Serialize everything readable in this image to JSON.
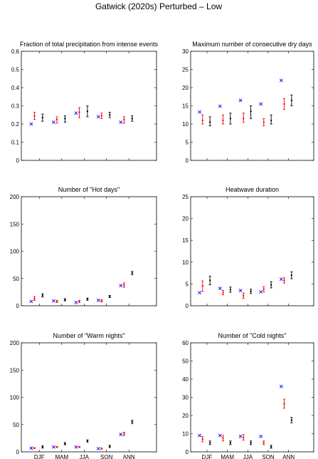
{
  "figure_title": "Gatwick (2020s) Perturbed – Low",
  "colors": {
    "series_a": "#ff0000",
    "series_b": "#000000",
    "marker": "#0000ff",
    "axis": "#000000"
  },
  "chart_data": [
    {
      "type": "errorbar",
      "title": "Fraction of total precipitation from intense events",
      "categories": [
        "DJF",
        "MAM",
        "JJA",
        "SON",
        "ANN"
      ],
      "show_xticklabels": false,
      "ylim": [
        0,
        0.6
      ],
      "yticks": [
        "0",
        "0.1",
        "0.2",
        "0.3",
        "0.4",
        "0.5",
        "0.6"
      ],
      "ytick_values": [
        0,
        0.1,
        0.2,
        0.3,
        0.4,
        0.5,
        0.6
      ],
      "series": [
        {
          "color": "red",
          "mid": [
            0.245,
            0.225,
            0.265,
            0.245,
            0.225
          ],
          "low": [
            0.225,
            0.205,
            0.235,
            0.23,
            0.205
          ],
          "high": [
            0.265,
            0.24,
            0.29,
            0.26,
            0.24
          ]
        },
        {
          "color": "black",
          "mid": [
            0.235,
            0.23,
            0.27,
            0.25,
            0.23
          ],
          "low": [
            0.215,
            0.21,
            0.24,
            0.235,
            0.215
          ],
          "high": [
            0.255,
            0.245,
            0.3,
            0.265,
            0.245
          ]
        }
      ],
      "points": [
        0.2,
        0.21,
        0.26,
        0.24,
        0.21
      ]
    },
    {
      "type": "errorbar",
      "title": "Maximum number of consecutive dry days",
      "categories": [
        "DJF",
        "MAM",
        "JJA",
        "SON",
        "ANN"
      ],
      "show_xticklabels": false,
      "ylim": [
        0,
        30
      ],
      "yticks": [
        "0",
        "5",
        "10",
        "15",
        "20",
        "25",
        "30"
      ],
      "ytick_values": [
        0,
        5,
        10,
        15,
        20,
        25,
        30
      ],
      "series": [
        {
          "color": "red",
          "mid": [
            11,
            11,
            11.5,
            10.5,
            15.5
          ],
          "low": [
            10,
            10,
            10.5,
            9.5,
            14
          ],
          "high": [
            12.5,
            12.5,
            13,
            11.5,
            17
          ]
        },
        {
          "color": "black",
          "mid": [
            10.5,
            11.5,
            13.5,
            11,
            16.5
          ],
          "low": [
            9.5,
            10,
            11.5,
            10,
            15
          ],
          "high": [
            12,
            13,
            15,
            12.5,
            18
          ]
        }
      ],
      "points": [
        13.3,
        14.9,
        16.5,
        15.5,
        22
      ]
    },
    {
      "type": "errorbar",
      "title": "Number of \"Hot days\"",
      "categories": [
        "DJF",
        "MAM",
        "JJA",
        "SON",
        "ANN"
      ],
      "show_xticklabels": false,
      "ylim": [
        0,
        200
      ],
      "yticks": [
        "0",
        "50",
        "100",
        "150",
        "200"
      ],
      "ytick_values": [
        0,
        50,
        100,
        150,
        200
      ],
      "series": [
        {
          "color": "red",
          "mid": [
            13,
            8,
            8,
            9,
            38
          ],
          "low": [
            10,
            6,
            6,
            7,
            34
          ],
          "high": [
            17,
            10,
            10,
            11,
            42
          ]
        },
        {
          "color": "black",
          "mid": [
            19,
            11,
            12,
            17,
            60
          ],
          "low": [
            16,
            9,
            10,
            15,
            57
          ],
          "high": [
            22,
            13,
            14,
            19,
            63
          ]
        }
      ],
      "points": [
        8,
        9,
        6,
        10,
        37
      ]
    },
    {
      "type": "errorbar",
      "title": "Heatwave duration",
      "categories": [
        "DJF",
        "MAM",
        "JJA",
        "SON",
        "ANN"
      ],
      "show_xticklabels": false,
      "ylim": [
        0,
        25
      ],
      "yticks": [
        "0",
        "5",
        "10",
        "15",
        "20",
        "25"
      ],
      "ytick_values": [
        0,
        5,
        10,
        15,
        20,
        25
      ],
      "series": [
        {
          "color": "red",
          "mid": [
            4.5,
            3,
            2.3,
            3.8,
            5.8
          ],
          "low": [
            3.3,
            2.5,
            1.7,
            3.2,
            5.2
          ],
          "high": [
            5.7,
            3.5,
            2.9,
            4.4,
            6.4
          ]
        },
        {
          "color": "black",
          "mid": [
            5.8,
            3.7,
            3.3,
            4.8,
            7
          ],
          "low": [
            4.8,
            3.1,
            2.8,
            4.1,
            6.2
          ],
          "high": [
            6.8,
            4.3,
            3.8,
            5.5,
            7.8
          ]
        }
      ],
      "points": [
        3,
        4,
        3.5,
        3.2,
        6.1
      ]
    },
    {
      "type": "errorbar",
      "title": "Number of \"Warm nights\"",
      "categories": [
        "DJF",
        "MAM",
        "JJA",
        "SON",
        "ANN"
      ],
      "show_xticklabels": true,
      "ylim": [
        0,
        200
      ],
      "yticks": [
        "0",
        "50",
        "100",
        "150",
        "200"
      ],
      "ytick_values": [
        0,
        50,
        100,
        150,
        200
      ],
      "series": [
        {
          "color": "red",
          "mid": [
            7,
            9,
            9,
            6,
            33
          ],
          "low": [
            6,
            8,
            8,
            5,
            30
          ],
          "high": [
            8,
            10,
            10,
            7,
            36
          ]
        },
        {
          "color": "black",
          "mid": [
            9,
            15,
            20,
            10,
            55
          ],
          "low": [
            7,
            13,
            18,
            8,
            52
          ],
          "high": [
            11,
            17,
            22,
            12,
            58
          ]
        }
      ],
      "points": [
        7,
        9,
        9,
        6,
        32
      ]
    },
    {
      "type": "errorbar",
      "title": "Number of \"Cold nights\"",
      "categories": [
        "DJF",
        "MAM",
        "JJA",
        "SON",
        "ANN"
      ],
      "show_xticklabels": true,
      "ylim": [
        0,
        60
      ],
      "yticks": [
        "0",
        "10",
        "20",
        "30",
        "40",
        "50",
        "60"
      ],
      "ytick_values": [
        0,
        10,
        20,
        30,
        40,
        50,
        60
      ],
      "series": [
        {
          "color": "red",
          "mid": [
            7,
            7.5,
            8,
            5,
            26.5
          ],
          "low": [
            5.5,
            6,
            6.5,
            4,
            24
          ],
          "high": [
            8.5,
            9,
            9.5,
            6,
            29
          ]
        },
        {
          "color": "black",
          "mid": [
            5,
            5,
            5,
            2.8,
            17.5
          ],
          "low": [
            4,
            4,
            4,
            2,
            16
          ],
          "high": [
            6,
            6,
            6,
            3.6,
            19
          ]
        }
      ],
      "points": [
        9,
        9,
        8.5,
        8.5,
        36
      ]
    }
  ]
}
